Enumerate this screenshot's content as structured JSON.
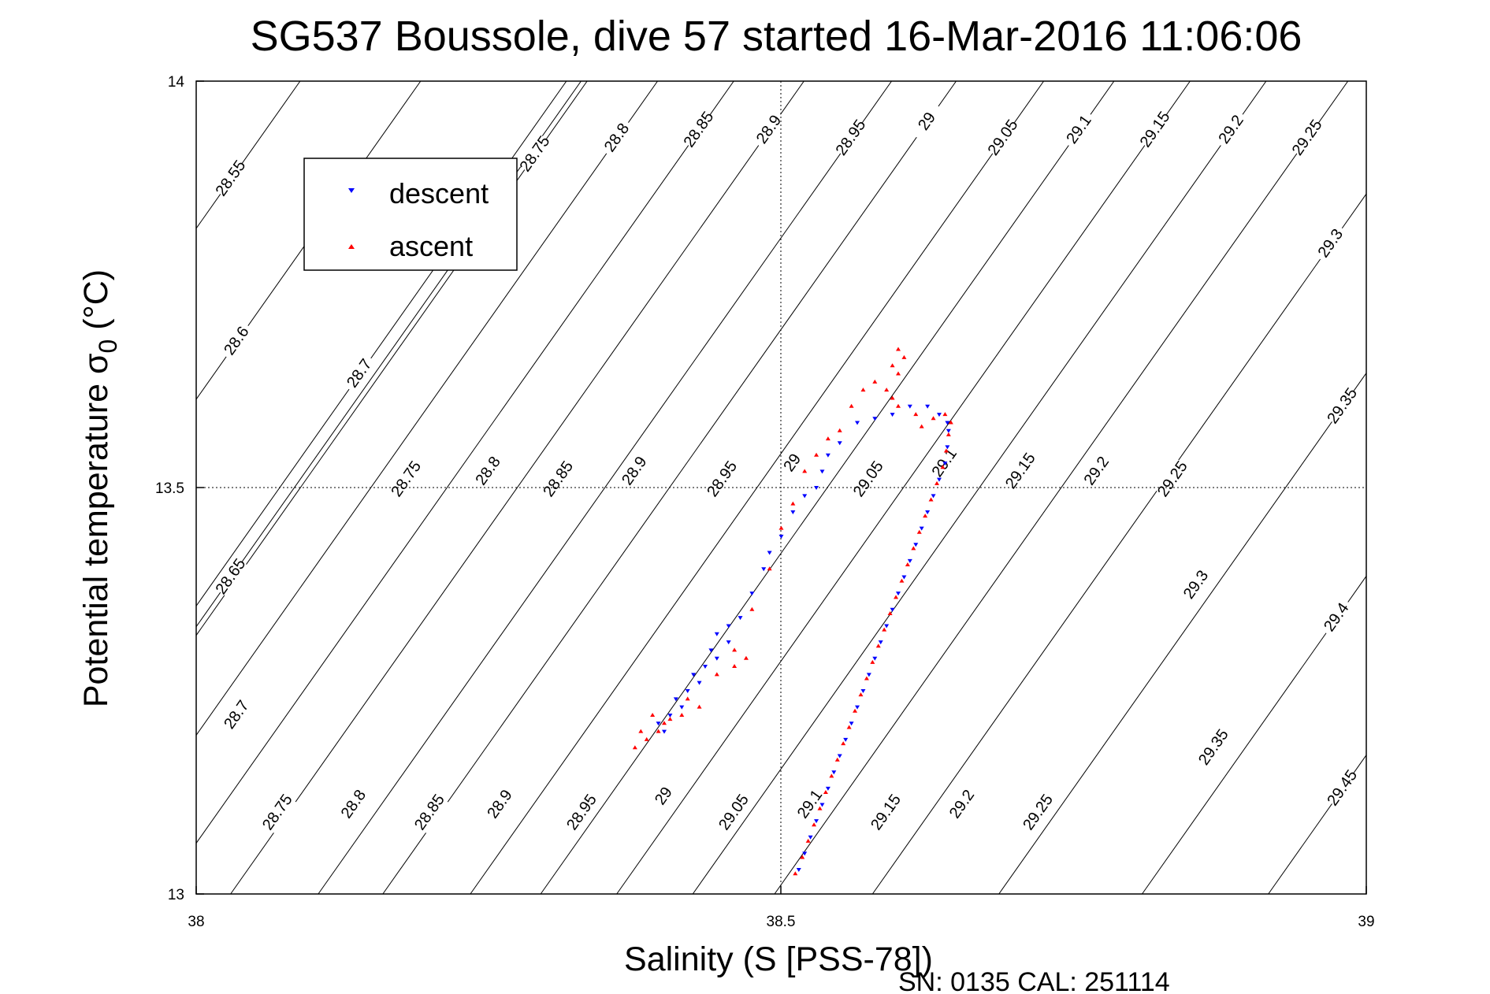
{
  "chart_data": {
    "type": "scatter",
    "title": "SG537 Boussole, dive 57 started 16-Mar-2016 11:06:06",
    "xlabel": "Salinity (S [PSS-78])",
    "ylabel_main": "Potential temperature σ",
    "ylabel_sub": "0",
    "ylabel_unit": " (°C)",
    "xlim": [
      38,
      39
    ],
    "ylim": [
      13,
      14
    ],
    "xticks": [
      "38",
      "38.5",
      "39"
    ],
    "yticks": [
      "13",
      "13.5",
      "14"
    ],
    "grid": "dotted lines at x=38.5 and y=13.5",
    "legend_position": "top-left",
    "legend": [
      "descent",
      "ascent"
    ],
    "colors": {
      "descent": "#0000ff",
      "ascent": "#ff0000"
    },
    "sigma_contours": [
      {
        "level": "28.55",
        "labels": [
          [
            38.03,
            13.88
          ]
        ]
      },
      {
        "level": "28.6",
        "labels": [
          [
            38.035,
            13.68
          ]
        ]
      },
      {
        "level": "28.65",
        "labels": [
          [
            38.03,
            13.39
          ]
        ]
      },
      {
        "level": "28.7",
        "labels": [
          [
            38.14,
            13.64
          ],
          [
            38.035,
            13.22
          ]
        ]
      },
      {
        "level": "28.75",
        "labels": [
          [
            38.29,
            13.91
          ],
          [
            38.18,
            13.51
          ],
          [
            38.07,
            13.1
          ]
        ]
      },
      {
        "level": "28.8",
        "labels": [
          [
            38.36,
            13.93
          ],
          [
            38.25,
            13.52
          ],
          [
            38.135,
            13.11
          ]
        ]
      },
      {
        "level": "28.85",
        "labels": [
          [
            38.43,
            13.94
          ],
          [
            38.31,
            13.51
          ],
          [
            38.2,
            13.1
          ]
        ]
      },
      {
        "level": "28.9",
        "labels": [
          [
            38.49,
            13.94
          ],
          [
            38.375,
            13.52
          ],
          [
            38.26,
            13.11
          ]
        ]
      },
      {
        "level": "28.95",
        "labels": [
          [
            38.56,
            13.93
          ],
          [
            38.45,
            13.51
          ],
          [
            38.33,
            13.1
          ]
        ]
      },
      {
        "level": "29",
        "labels": [
          [
            38.625,
            13.95
          ],
          [
            38.51,
            13.53
          ],
          [
            38.4,
            13.12
          ]
        ]
      },
      {
        "level": "29.05",
        "labels": [
          [
            38.69,
            13.93
          ],
          [
            38.575,
            13.51
          ],
          [
            38.46,
            13.1
          ]
        ]
      },
      {
        "level": "29.1",
        "labels": [
          [
            38.755,
            13.94
          ],
          [
            38.64,
            13.53
          ],
          [
            38.525,
            13.11
          ]
        ]
      },
      {
        "level": "29.15",
        "labels": [
          [
            38.82,
            13.94
          ],
          [
            38.705,
            13.52
          ],
          [
            38.59,
            13.1
          ]
        ]
      },
      {
        "level": "29.2",
        "labels": [
          [
            38.885,
            13.94
          ],
          [
            38.77,
            13.52
          ],
          [
            38.655,
            13.11
          ]
        ]
      },
      {
        "level": "29.25",
        "labels": [
          [
            38.95,
            13.93
          ],
          [
            38.835,
            13.51
          ],
          [
            38.72,
            13.1
          ]
        ]
      },
      {
        "level": "29.3",
        "labels": [
          [
            38.97,
            13.8
          ],
          [
            38.855,
            13.38
          ]
        ]
      },
      {
        "level": "29.35",
        "labels": [
          [
            38.98,
            13.6
          ],
          [
            38.87,
            13.18
          ]
        ]
      },
      {
        "level": "29.4",
        "labels": [
          [
            38.975,
            13.34
          ]
        ]
      },
      {
        "level": "29.45",
        "labels": [
          [
            38.98,
            13.13
          ]
        ]
      }
    ],
    "series": [
      {
        "name": "descent",
        "points": [
          [
            38.515,
            13.03
          ],
          [
            38.52,
            13.05
          ],
          [
            38.525,
            13.07
          ],
          [
            38.53,
            13.09
          ],
          [
            38.535,
            13.11
          ],
          [
            38.54,
            13.13
          ],
          [
            38.545,
            13.15
          ],
          [
            38.55,
            13.17
          ],
          [
            38.555,
            13.19
          ],
          [
            38.56,
            13.21
          ],
          [
            38.565,
            13.23
          ],
          [
            38.57,
            13.25
          ],
          [
            38.575,
            13.27
          ],
          [
            38.58,
            13.29
          ],
          [
            38.585,
            13.31
          ],
          [
            38.59,
            13.33
          ],
          [
            38.595,
            13.35
          ],
          [
            38.6,
            13.37
          ],
          [
            38.605,
            13.39
          ],
          [
            38.61,
            13.41
          ],
          [
            38.615,
            13.43
          ],
          [
            38.62,
            13.45
          ],
          [
            38.625,
            13.47
          ],
          [
            38.63,
            13.49
          ],
          [
            38.635,
            13.51
          ],
          [
            38.64,
            13.53
          ],
          [
            38.642,
            13.55
          ],
          [
            38.643,
            13.57
          ],
          [
            38.642,
            13.58
          ],
          [
            38.635,
            13.59
          ],
          [
            38.625,
            13.6
          ],
          [
            38.61,
            13.6
          ],
          [
            38.595,
            13.59
          ],
          [
            38.58,
            13.585
          ],
          [
            38.565,
            13.58
          ],
          [
            38.55,
            13.555
          ],
          [
            38.54,
            13.54
          ],
          [
            38.535,
            13.52
          ],
          [
            38.53,
            13.5
          ],
          [
            38.52,
            13.49
          ],
          [
            38.51,
            13.47
          ],
          [
            38.5,
            13.44
          ],
          [
            38.49,
            13.42
          ],
          [
            38.485,
            13.4
          ],
          [
            38.475,
            13.37
          ],
          [
            38.465,
            13.34
          ],
          [
            38.455,
            13.33
          ],
          [
            38.445,
            13.32
          ],
          [
            38.44,
            13.3
          ],
          [
            38.435,
            13.28
          ],
          [
            38.43,
            13.26
          ],
          [
            38.42,
            13.25
          ],
          [
            38.41,
            13.24
          ],
          [
            38.405,
            13.22
          ],
          [
            38.4,
            13.2
          ],
          [
            38.395,
            13.21
          ],
          [
            38.415,
            13.23
          ],
          [
            38.425,
            13.27
          ],
          [
            38.445,
            13.29
          ],
          [
            38.455,
            13.31
          ]
        ]
      },
      {
        "name": "ascent",
        "points": [
          [
            38.512,
            13.025
          ],
          [
            38.518,
            13.045
          ],
          [
            38.523,
            13.065
          ],
          [
            38.528,
            13.085
          ],
          [
            38.533,
            13.105
          ],
          [
            38.538,
            13.125
          ],
          [
            38.543,
            13.145
          ],
          [
            38.548,
            13.165
          ],
          [
            38.553,
            13.185
          ],
          [
            38.558,
            13.205
          ],
          [
            38.563,
            13.225
          ],
          [
            38.568,
            13.245
          ],
          [
            38.573,
            13.265
          ],
          [
            38.578,
            13.285
          ],
          [
            38.583,
            13.305
          ],
          [
            38.588,
            13.325
          ],
          [
            38.593,
            13.345
          ],
          [
            38.598,
            13.365
          ],
          [
            38.603,
            13.385
          ],
          [
            38.608,
            13.405
          ],
          [
            38.613,
            13.425
          ],
          [
            38.618,
            13.445
          ],
          [
            38.623,
            13.465
          ],
          [
            38.628,
            13.485
          ],
          [
            38.633,
            13.505
          ],
          [
            38.638,
            13.525
          ],
          [
            38.641,
            13.545
          ],
          [
            38.643,
            13.565
          ],
          [
            38.645,
            13.58
          ],
          [
            38.64,
            13.59
          ],
          [
            38.63,
            13.585
          ],
          [
            38.62,
            13.575
          ],
          [
            38.615,
            13.59
          ],
          [
            38.6,
            13.6
          ],
          [
            38.595,
            13.61
          ],
          [
            38.59,
            13.62
          ],
          [
            38.6,
            13.64
          ],
          [
            38.605,
            13.66
          ],
          [
            38.6,
            13.67
          ],
          [
            38.595,
            13.65
          ],
          [
            38.58,
            13.63
          ],
          [
            38.57,
            13.62
          ],
          [
            38.56,
            13.6
          ],
          [
            38.55,
            13.57
          ],
          [
            38.54,
            13.56
          ],
          [
            38.53,
            13.54
          ],
          [
            38.52,
            13.52
          ],
          [
            38.51,
            13.48
          ],
          [
            38.5,
            13.45
          ],
          [
            38.49,
            13.4
          ],
          [
            38.475,
            13.35
          ],
          [
            38.46,
            13.3
          ],
          [
            38.445,
            13.27
          ],
          [
            38.43,
            13.23
          ],
          [
            38.415,
            13.22
          ],
          [
            38.4,
            13.21
          ],
          [
            38.39,
            13.22
          ],
          [
            38.38,
            13.2
          ],
          [
            38.375,
            13.18
          ],
          [
            38.385,
            13.19
          ],
          [
            38.395,
            13.2
          ],
          [
            38.46,
            13.28
          ],
          [
            38.47,
            13.29
          ],
          [
            38.42,
            13.24
          ],
          [
            38.405,
            13.215
          ]
        ]
      }
    ]
  },
  "footer": {
    "serial": "SN: 0135  CAL: 251114"
  }
}
